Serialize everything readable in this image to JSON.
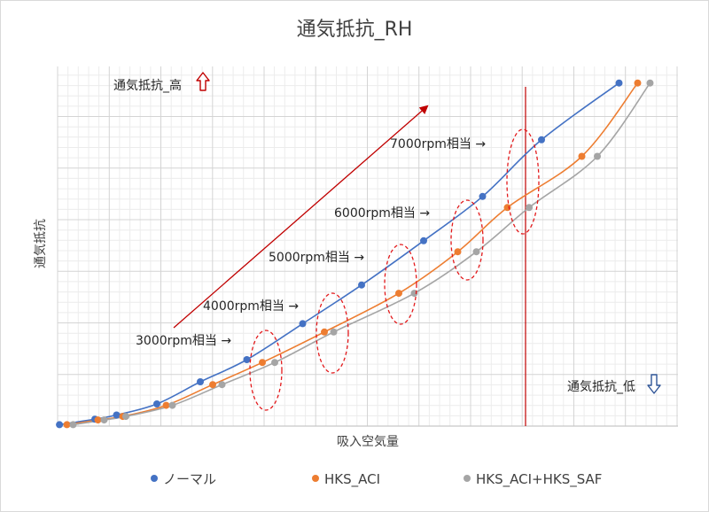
{
  "chart_data": {
    "type": "scatter",
    "title": "通気抵抗_RH",
    "xlabel": "吸入空気量",
    "ylabel": "通気抵抗",
    "xticks_shown": false,
    "yticks_shown": false,
    "grid": true,
    "legend_position": "bottom",
    "series": [
      {
        "name": "ノーマル",
        "color": "#4472C4",
        "x": [
          0.3,
          6,
          9.5,
          16,
          23,
          30.5,
          39.5,
          49,
          59,
          68.5,
          78,
          90.5
        ],
        "y": [
          0.5,
          2.5,
          4,
          8,
          16,
          24,
          37,
          51,
          67,
          83,
          103.5,
          124
        ]
      },
      {
        "name": "HKS_ACI",
        "color": "#ED7D31",
        "x": [
          1.5,
          6.5,
          10.5,
          17.5,
          25,
          33,
          43,
          55,
          64.5,
          72.5,
          84.5,
          93.5
        ],
        "y": [
          0.5,
          2.2,
          3.5,
          7.5,
          15,
          23,
          34,
          48,
          63,
          79,
          97.5,
          124
        ]
      },
      {
        "name": "HKS_ACI+HKS_SAF",
        "color": "#A5A5A5",
        "x": [
          2.5,
          7.5,
          11,
          18.5,
          26.5,
          35,
          44.5,
          57.5,
          67.5,
          76,
          87,
          95.5
        ],
        "y": [
          0.5,
          2.2,
          3.5,
          7.5,
          15,
          23,
          34,
          48,
          63,
          79,
          97.5,
          124
        ]
      }
    ],
    "annotations": [
      {
        "text": "3000rpm相当 →",
        "group": "3000rpm"
      },
      {
        "text": "4000rpm相当 →",
        "group": "4000rpm"
      },
      {
        "text": "5000rpm相当 →",
        "group": "5000rpm"
      },
      {
        "text": "6000rpm相当 →",
        "group": "6000rpm"
      },
      {
        "text": "7000rpm相当 →",
        "group": "7000rpm"
      },
      {
        "text": "通気抵抗_高",
        "group": "high",
        "icon": "arrow-up-outline-icon",
        "color": "#C00000"
      },
      {
        "text": "通気抵抗_低",
        "group": "low",
        "icon": "arrow-down-outline-icon",
        "color": "#2F5597"
      }
    ],
    "reference_line_color": "#C00000",
    "trend_arrow_color": "#C00000",
    "group_outline_color": "#E31A1C"
  }
}
